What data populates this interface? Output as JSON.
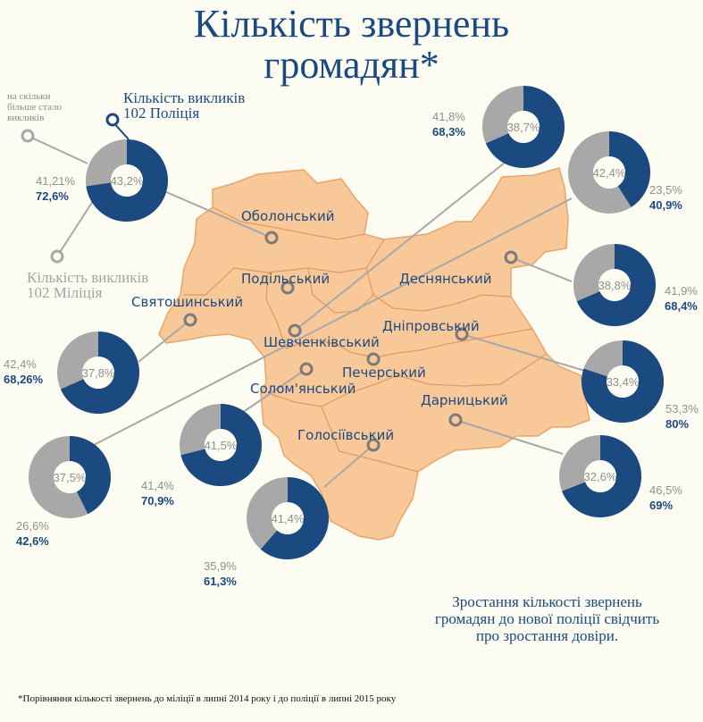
{
  "title_line1": "Кількість звернень",
  "title_line2": "громадян*",
  "legend": {
    "increase_line1": "на скільки",
    "increase_line2": "більше стало",
    "increase_line3": "викликів",
    "police_line1": "Кількість викликів",
    "police_line2": "102 Поліція",
    "militia_line1": "Кількість викликів",
    "militia_line2": "102 Міліція"
  },
  "conclusion_line1": "Зростання кількості звернень",
  "conclusion_line2": "громадян до нової поліції свідчить",
  "conclusion_line3": "про зростання довіри.",
  "footnote": "*Порівняння кількості звернень до міліції в липні 2014 року і до поліції в липні 2015 року",
  "colors": {
    "police": "#1b4a80",
    "militia": "#a8a8a8",
    "map_fill": "#f8c899",
    "map_stroke": "#e8a56b"
  },
  "districts": [
    {
      "name": "Оболонський",
      "increase": "43,2%",
      "militia": "41,21%",
      "police": "72,6%",
      "police_value": 72.6
    },
    {
      "name": "Подільський",
      "increase": "38,7%",
      "militia": "41,8%",
      "police": "68,3%",
      "police_value": 68.3
    },
    {
      "name": "Деснянський",
      "increase": "38,8%",
      "militia": "41,9%",
      "police": "68,4%",
      "police_value": 68.4
    },
    {
      "name": "Святошинський",
      "increase": "37,8%",
      "militia": "42,4%",
      "police": "68,26%",
      "police_value": 68.26
    },
    {
      "name": "Шевченківський",
      "increase": "37,5%",
      "militia": "26,6%",
      "police": "42,6%",
      "police_value": 42.6
    },
    {
      "name": "Дніпровський",
      "increase": "33,4%",
      "militia": "53,3%",
      "police": "80%",
      "police_value": 80
    },
    {
      "name": "Печерський",
      "increase": "42,4%",
      "militia": "23,5%",
      "police": "40,9%",
      "police_value": 40.9
    },
    {
      "name": "Солом'янський",
      "increase": "41,5%",
      "militia": "41,4%",
      "police": "70,9%",
      "police_value": 70.9
    },
    {
      "name": "Дарницький",
      "increase": "32,6%",
      "militia": "46,5%",
      "police": "69%",
      "police_value": 69
    },
    {
      "name": "Голосіївський",
      "increase": "41,4%",
      "militia": "35,9%",
      "police": "61,3%",
      "police_value": 61.3
    }
  ]
}
